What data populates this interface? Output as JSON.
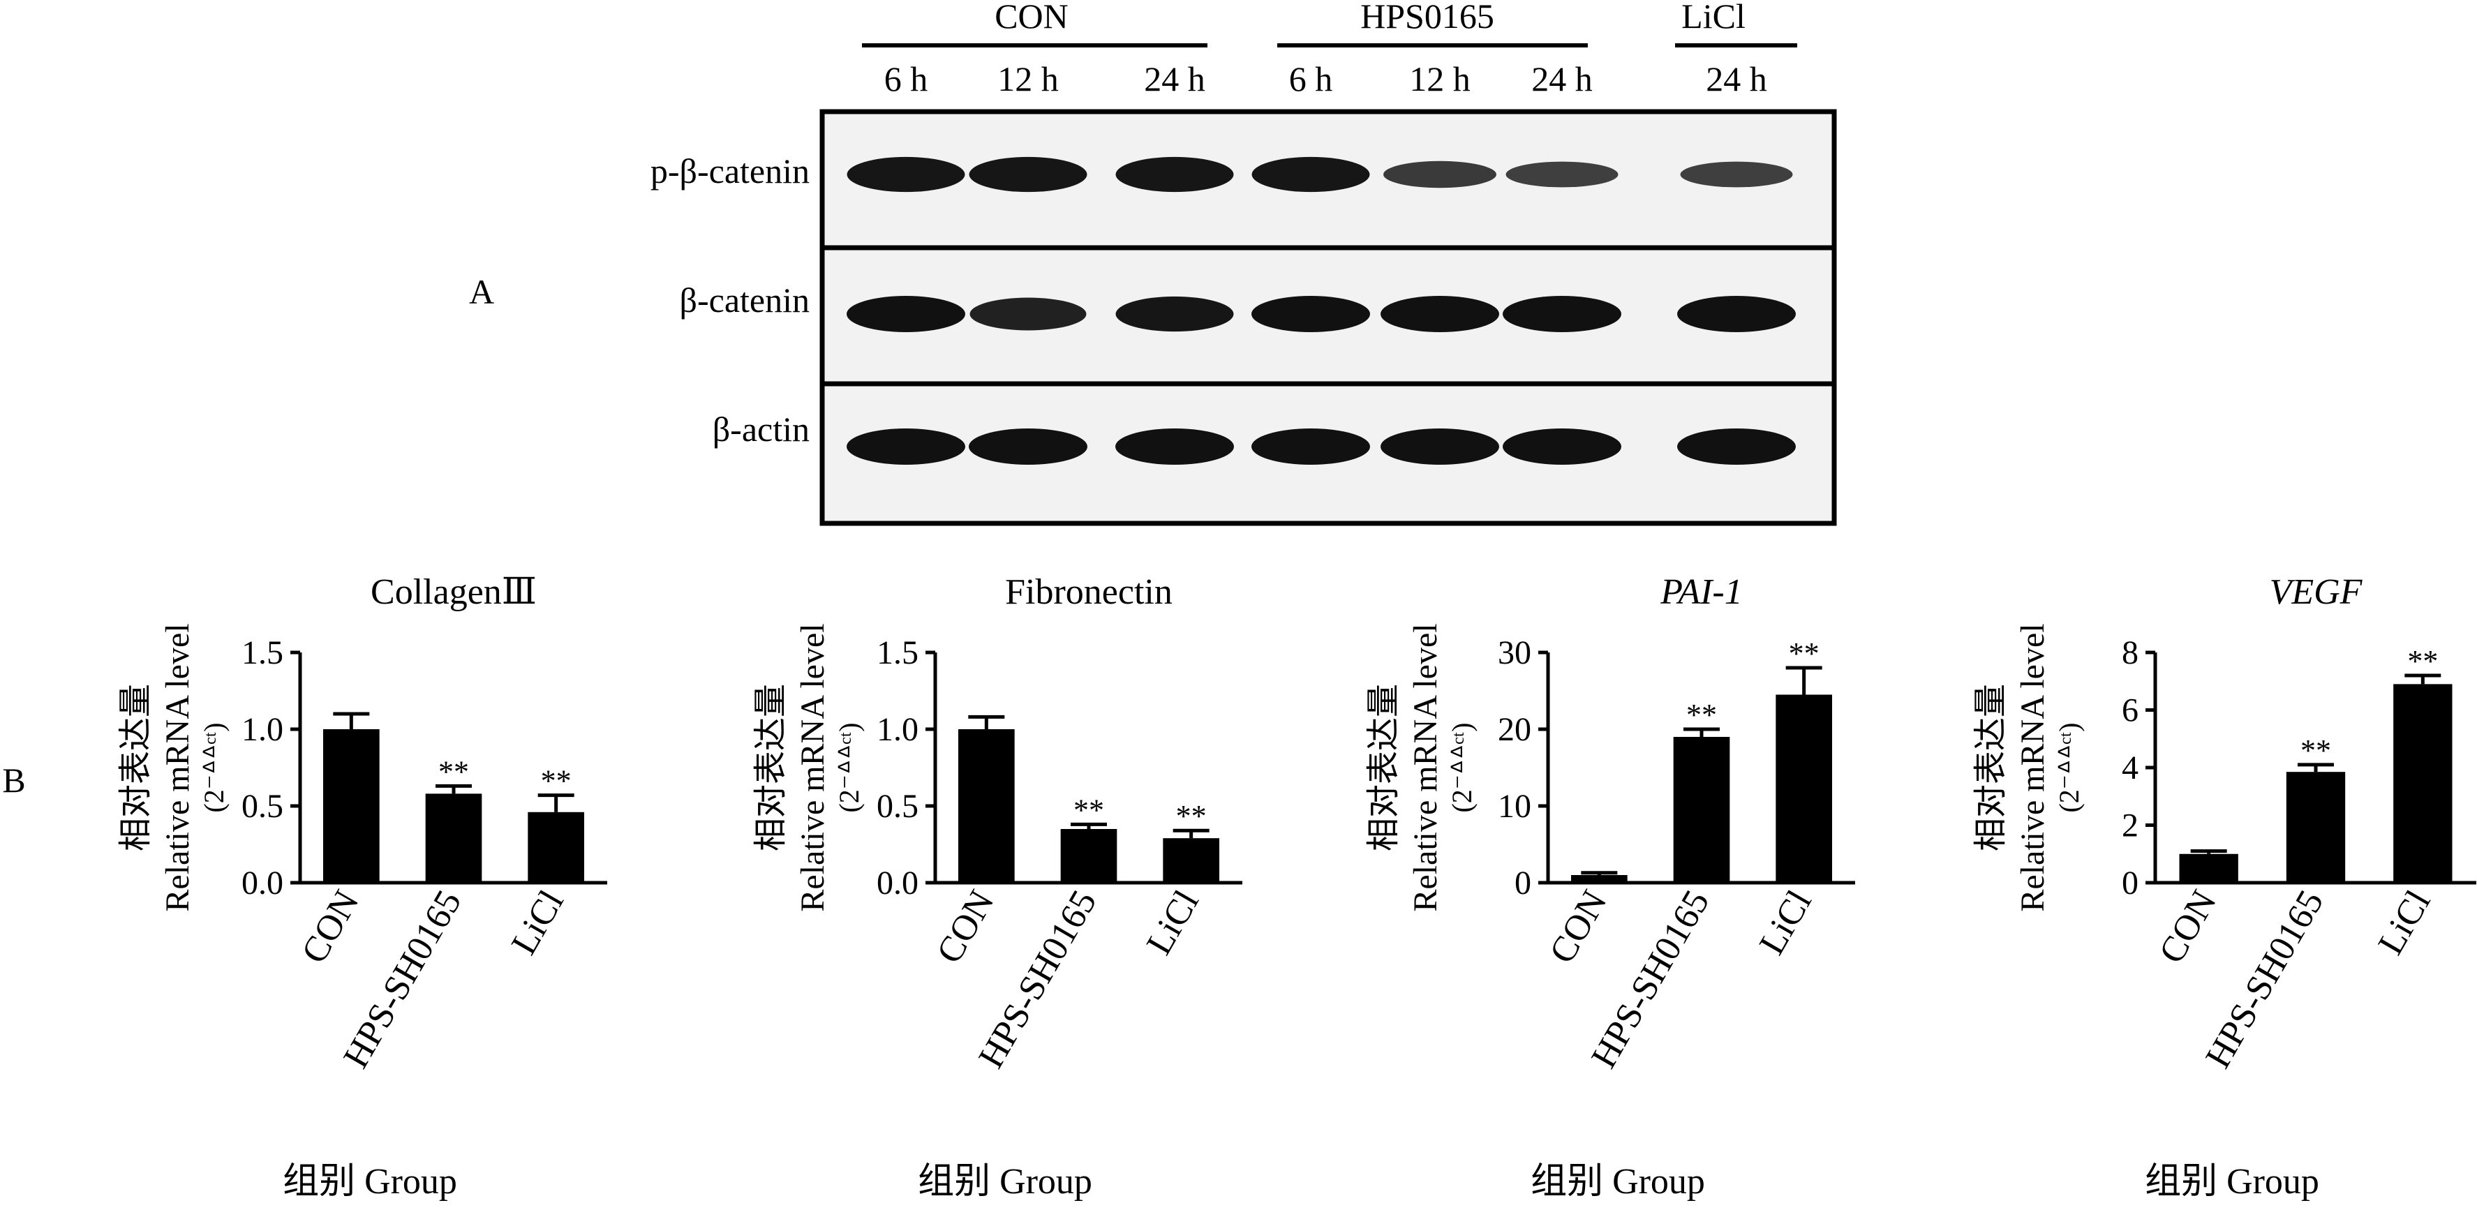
{
  "panel_labels": {
    "a": "A",
    "b": "B"
  },
  "blot": {
    "groups": [
      {
        "name": "CON",
        "lanes": [
          "6 h",
          "12 h",
          "24 h"
        ]
      },
      {
        "name": "HPS0165",
        "lanes": [
          "6 h",
          "12 h",
          "24 h"
        ]
      },
      {
        "name": "LiCl",
        "lanes": [
          "24 h"
        ]
      }
    ],
    "rows": [
      {
        "label": "p-β-catenin",
        "intensity": [
          0.95,
          0.95,
          0.95,
          0.95,
          0.6,
          0.55,
          0.55
        ]
      },
      {
        "label": "β-catenin",
        "intensity": [
          1.0,
          0.85,
          0.95,
          1.0,
          1.0,
          1.0,
          1.0
        ]
      },
      {
        "label": "β-actin",
        "intensity": [
          1.0,
          1.0,
          1.0,
          1.0,
          1.0,
          1.0,
          1.0
        ]
      }
    ]
  },
  "chart_common": {
    "ylabel_cn": "相对表达量",
    "ylabel_en": "Relative mRNA level",
    "ylabel_unit": "(2⁻ᐞᐞᶜᵗ)",
    "xlabel": "组别  Group",
    "categories": [
      "CON",
      "HPS-SH0165",
      "LiCl"
    ]
  },
  "chart_data": [
    {
      "type": "bar",
      "title": "CollagenⅢ",
      "title_italic": false,
      "categories": [
        "CON",
        "HPS-SH0165",
        "LiCl"
      ],
      "values": [
        1.0,
        0.58,
        0.46
      ],
      "errors": [
        0.1,
        0.05,
        0.11
      ],
      "significance": [
        "",
        "**",
        "**"
      ],
      "ylim": [
        0,
        1.5
      ],
      "yticks": [
        "0.0",
        "0.5",
        "1.0",
        "1.5"
      ],
      "ylabel": "相对表达量 Relative mRNA level (2⁻ᐞᐞᶜᵗ)",
      "xlabel": "组别  Group"
    },
    {
      "type": "bar",
      "title": "Fibronectin",
      "title_italic": false,
      "categories": [
        "CON",
        "HPS-SH0165",
        "LiCl"
      ],
      "values": [
        1.0,
        0.35,
        0.29
      ],
      "errors": [
        0.08,
        0.03,
        0.05
      ],
      "significance": [
        "",
        "**",
        "**"
      ],
      "ylim": [
        0,
        1.5
      ],
      "yticks": [
        "0.0",
        "0.5",
        "1.0",
        "1.5"
      ],
      "ylabel": "相对表达量 Relative mRNA level (2⁻ᐞᐞᶜᵗ)",
      "xlabel": "组别  Group"
    },
    {
      "type": "bar",
      "title": "PAI-1",
      "title_italic": true,
      "categories": [
        "CON",
        "HPS-SH0165",
        "LiCl"
      ],
      "values": [
        1.0,
        19.0,
        24.5
      ],
      "errors": [
        0.3,
        1.0,
        3.5
      ],
      "significance": [
        "",
        "**",
        "**"
      ],
      "ylim": [
        0,
        30
      ],
      "yticks": [
        "0",
        "10",
        "20",
        "30"
      ],
      "ylabel": "相对表达量 Relative mRNA level (2⁻ᐞᐞᶜᵗ)",
      "xlabel": "组别  Group"
    },
    {
      "type": "bar",
      "title": "VEGF",
      "title_italic": true,
      "categories": [
        "CON",
        "HPS-SH0165",
        "LiCl"
      ],
      "values": [
        1.0,
        3.85,
        6.9
      ],
      "errors": [
        0.1,
        0.25,
        0.3
      ],
      "significance": [
        "",
        "**",
        "**"
      ],
      "ylim": [
        0,
        8
      ],
      "yticks": [
        "0",
        "2",
        "4",
        "6",
        "8"
      ],
      "ylabel": "相对表达量 Relative mRNA level (2⁻ᐞᐞᶜᵗ)",
      "xlabel": "组别  Group"
    }
  ]
}
